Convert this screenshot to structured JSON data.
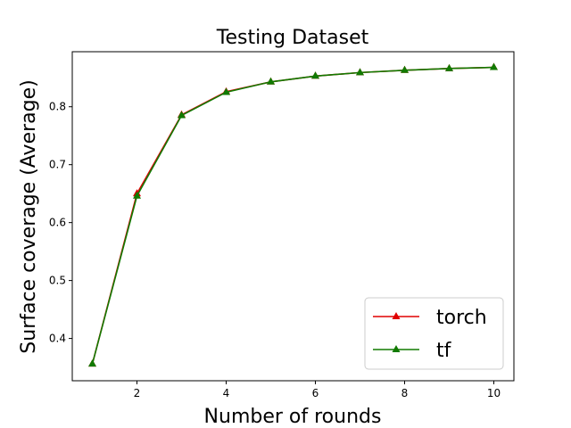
{
  "chart_data": {
    "type": "line",
    "title": "Testing Dataset",
    "xlabel": "Number of rounds",
    "ylabel": "Surface coverage (Average)",
    "xlim": [
      0.55,
      10.45
    ],
    "ylim": [
      0.327,
      0.895
    ],
    "xticks": [
      2,
      4,
      6,
      8,
      10
    ],
    "yticks": [
      0.4,
      0.5,
      0.6,
      0.7,
      0.8
    ],
    "x": [
      1,
      2,
      3,
      4,
      5,
      6,
      7,
      8,
      9,
      10
    ],
    "legend_position": "lower-right",
    "grid": false,
    "series": [
      {
        "name": "torch",
        "color": "#e00000",
        "marker": "triangle",
        "values": [
          0.356,
          0.65,
          0.786,
          0.826,
          0.843,
          0.853,
          0.859,
          0.863,
          0.866,
          0.868
        ]
      },
      {
        "name": "tf",
        "color": "#117a00",
        "marker": "triangle",
        "values": [
          0.356,
          0.646,
          0.785,
          0.825,
          0.843,
          0.853,
          0.859,
          0.863,
          0.866,
          0.868
        ]
      }
    ]
  }
}
